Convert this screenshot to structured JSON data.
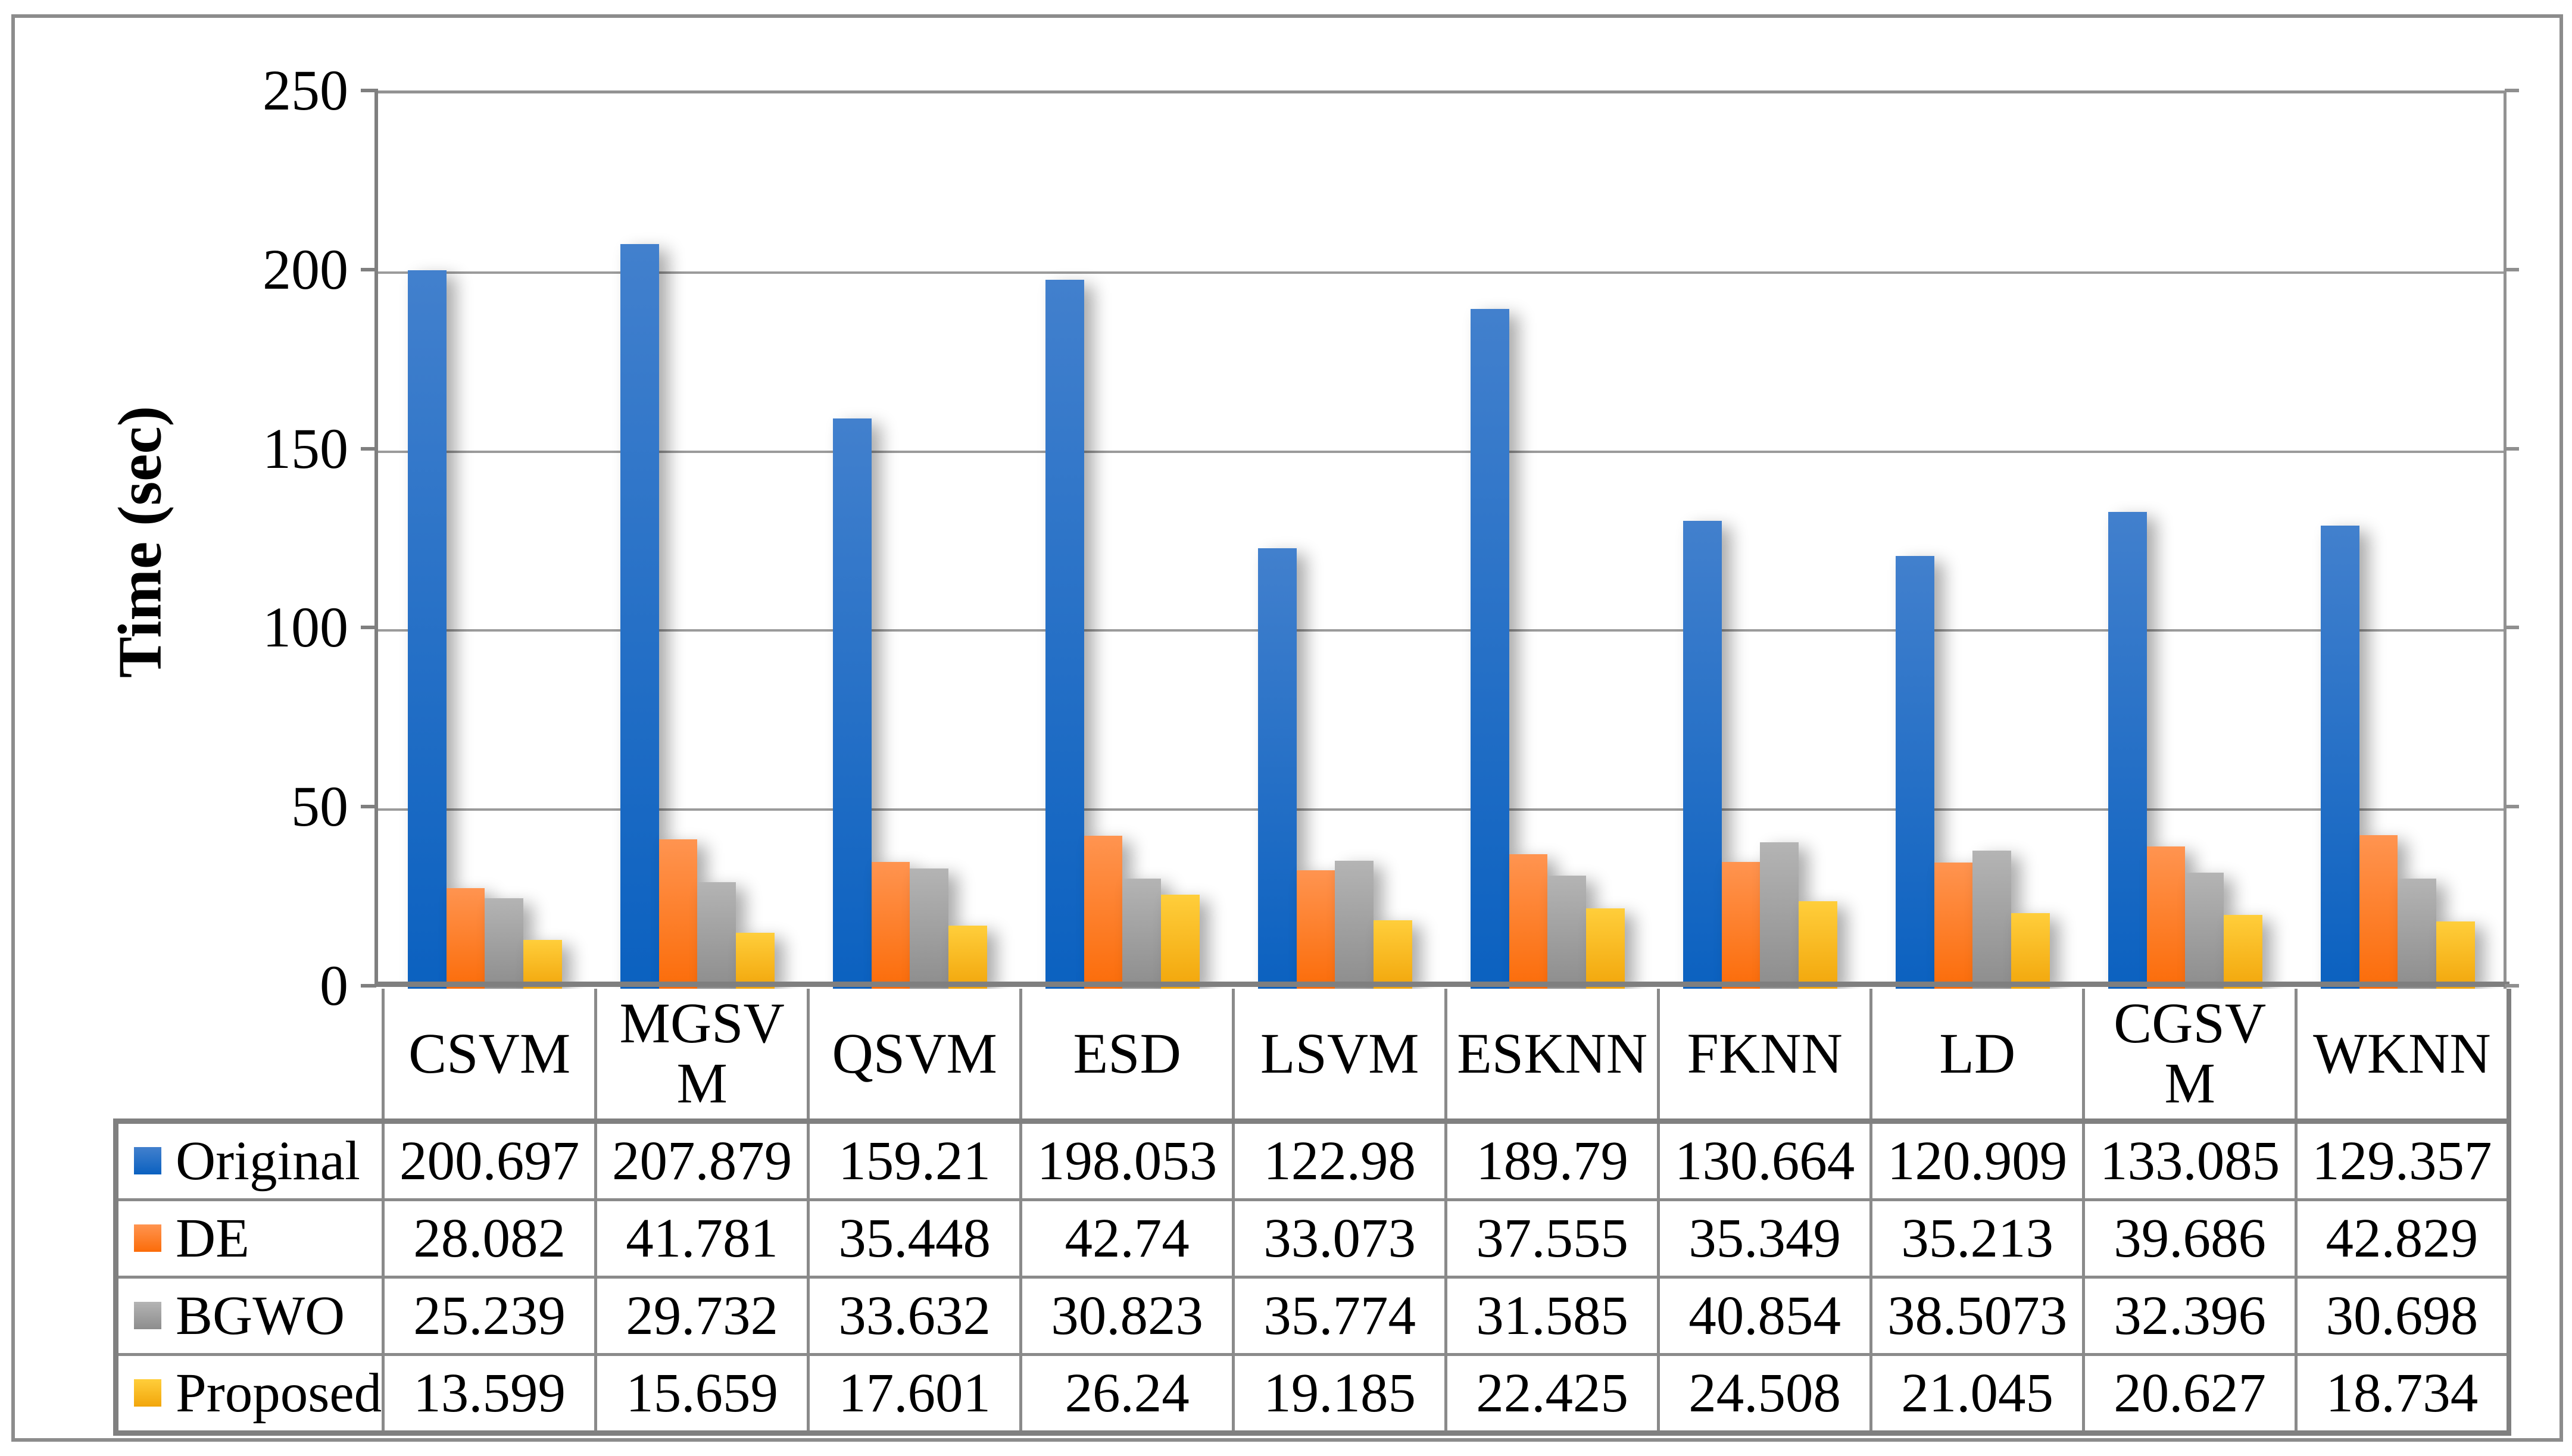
{
  "figure": {
    "background": "#ffffff",
    "frame_color": "#8c8c8c"
  },
  "chart_data": {
    "type": "bar",
    "title": "",
    "xlabel": "",
    "ylabel": "Time (sec)",
    "ylim": [
      0,
      250
    ],
    "yticks": [
      0,
      50,
      100,
      150,
      200,
      250
    ],
    "grid": true,
    "legend_position": "table-left-column",
    "categories": [
      "CSVM",
      "MGSVM",
      "QSVM",
      "ESD",
      "LSVM",
      "ESKNN",
      "FKNN",
      "LD",
      "CGSVM",
      "WKNN"
    ],
    "category_header_lines": [
      [
        "CSVM"
      ],
      [
        "MGSV",
        "M"
      ],
      [
        "QSVM"
      ],
      [
        "ESD"
      ],
      [
        "LSVM"
      ],
      [
        "ESKNN"
      ],
      [
        "FKNN"
      ],
      [
        "LD"
      ],
      [
        "CGSV",
        "M"
      ],
      [
        "WKNN"
      ]
    ],
    "series": [
      {
        "name": "Original",
        "color_top": "#4280cd",
        "color_bottom": "#0b61c0",
        "values": [
          200.697,
          207.879,
          159.21,
          198.053,
          122.98,
          189.79,
          130.664,
          120.909,
          133.085,
          129.357
        ]
      },
      {
        "name": "DE",
        "color_top": "#ff9450",
        "color_bottom": "#fb6c09",
        "values": [
          28.082,
          41.781,
          35.448,
          42.74,
          33.073,
          37.555,
          35.349,
          35.213,
          39.686,
          42.829
        ]
      },
      {
        "name": "BGWO",
        "color_top": "#b4b4b4",
        "color_bottom": "#8d8d8d",
        "values": [
          25.239,
          29.732,
          33.632,
          30.823,
          35.774,
          31.585,
          40.854,
          38.5073,
          32.396,
          30.698
        ]
      },
      {
        "name": "Proposed",
        "color_top": "#ffce3b",
        "color_bottom": "#f2a60b",
        "values": [
          13.599,
          15.659,
          17.601,
          26.24,
          19.185,
          22.425,
          24.508,
          21.045,
          20.627,
          18.734
        ]
      }
    ]
  }
}
